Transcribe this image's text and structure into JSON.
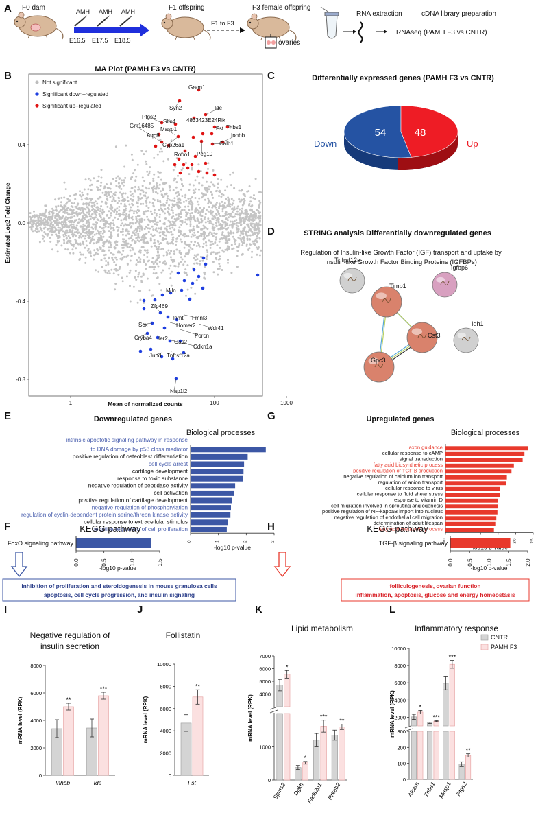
{
  "panel_letters": {
    "A": "A",
    "B": "B",
    "C": "C",
    "D": "D",
    "E": "E",
    "F": "F",
    "G": "G",
    "H": "H",
    "I": "I",
    "J": "J",
    "K": "K",
    "L": "L"
  },
  "panelA": {
    "f0": "F0 dam",
    "amh": "AMH",
    "e165": "E16.5",
    "e175": "E17.5",
    "e185": "E18.5",
    "f1": "F1 offspring",
    "f1tof3": "F1 to F3",
    "f3": "F3 female offspring",
    "ovaries": "ovaries",
    "rna": "RNA extraction",
    "cdna": "cDNA library preparation",
    "rnaseq": "RNAseq (PAMH F3 vs CNTR)"
  },
  "panelB": {
    "title": "MA Plot (PAMH F3 vs CNTR)",
    "legend": [
      "Not significant",
      "Significant down–regulated",
      "Significant up–regulated"
    ],
    "ylabel": "Estimated Log2 Fold Change",
    "xlabel": "Mean of normalized counts",
    "yticks": [
      "0.4",
      "0.0",
      "-0.4",
      "-0.8"
    ],
    "xticks": [
      "1",
      "100",
      "1000"
    ],
    "up_labels": [
      "Grem1",
      "Syn2",
      "Ide",
      "Ptgs2",
      "Slfn4",
      "4833423E24Rik",
      "Gm16485",
      "Masp1",
      "Fst",
      "Thbs1",
      "Aqp8",
      "Inhbb",
      "Cyp26a1",
      "Calb1",
      "Robo1",
      "Peg10"
    ],
    "down_labels": [
      "Mlln",
      "Zfp469",
      "Inmt",
      "Fmnl3",
      "Scx",
      "Homer2",
      "Wdr41",
      "Cryba4",
      "Ier2",
      "Porcn",
      "Gas2",
      "Cdkn1a",
      "Jund",
      "Tnfrsf12a",
      "Nap1l2"
    ]
  },
  "panelC": {
    "title": "Differentially expressed genes (PAMH F3 vs CNTR)",
    "down_label": "Down",
    "up_label": "Up",
    "colors": {
      "down": "#2553a3",
      "up": "#ee1c25"
    }
  },
  "panelD": {
    "title": "STRING analysis Differentially downregulated genes",
    "subtitle1": "Regulation of Insulin-like Growth Factor (IGF) transport and uptake by",
    "subtitle2": "Insulin-like Growth Factor Binding Proteins (IGFBPs)",
    "nodes": [
      "Tnfrsf12a",
      "Timp1",
      "Igfbp6",
      "Cst3",
      "Idh1",
      "Gpc3"
    ]
  },
  "panelE": {
    "title": "Downregulated genes",
    "subtitle": "Biological processes",
    "xlabel": "-log10 p-value",
    "xticks": [
      "0",
      "1",
      "2",
      "3"
    ],
    "color": "#3c57a5"
  },
  "panelG": {
    "title": "Upregulated genes",
    "subtitle": "Biological processes",
    "xlabel": "-log10 p-value",
    "xticks": [
      "0.0",
      "0.5",
      "1.0",
      "1.5",
      "2.0",
      "2.5"
    ],
    "color": "#e8392c"
  },
  "panelF": {
    "title": "KEGG pathway",
    "term": "FoxO signaling pathway",
    "value": 1.35,
    "xticks": [
      "0.0",
      "0.5",
      "1.0",
      "1.5"
    ],
    "xlabel": "-log10 p-value",
    "box1": "inhibition of  proliferation and steroidogenesis in mouse granulosa cells",
    "box2": "apoptosis, cell cycle progression, and insulin signaling"
  },
  "panelH": {
    "title": "KEGG pathway",
    "term": "TGF-β signaling pathway",
    "value": 1.55,
    "xticks": [
      "0.0",
      "0.5",
      "1.0",
      "1.5",
      "2.0"
    ],
    "xlabel": "-log10 p-value",
    "box1": "folliculogenesis, ovarian function",
    "box2": "inflammation, apoptosis, glucose and energy homeostasis"
  },
  "panelI": {
    "title1": "Negative regulation of",
    "title2": "insulin secretion",
    "ylabel": "mRNA level (RPK)"
  },
  "panelJ": {
    "title": "Follistatin",
    "ylabel": "mRNA level (RPK)"
  },
  "panelK": {
    "title": "Lipid metabolism",
    "ylabel": "mRNA level (RPK)"
  },
  "panelL": {
    "title": "Inflammatory response",
    "ylabel": "mRNA level (RPK)",
    "legend": [
      "CNTR",
      "PAMH F3"
    ]
  },
  "bar_colors": {
    "cntr": "#d4d4d4",
    "pamh": "#fbe0e0",
    "cntr_edge": "#9a9a9a",
    "pamh_edge": "#e49b9b"
  },
  "chart_data": [
    {
      "type": "pie",
      "panel": "C",
      "title": "Differentially expressed genes (PAMH F3 vs CNTR)",
      "labels": [
        "Down",
        "Up"
      ],
      "values": [
        54,
        48
      ]
    },
    {
      "type": "bar",
      "panel": "E",
      "title": "Downregulated genes",
      "subtitle": "Biological processes",
      "orientation": "horizontal",
      "xlabel": "-log10 p-value",
      "xlim": [
        0,
        3
      ],
      "categories": [
        "intrinsic apoptotic signaling pathway in response to DNA damage by p53 class mediator",
        "positive regulation of osteoblast differentiation",
        "cell cycle arrest",
        "cartilage development",
        "response to toxic substance",
        "negative regulation of peptidase activity",
        "cell activation",
        "positive regulation of cartilage development",
        "negative regulation of phosphorylation",
        "regulation of cyclin-dependent protein serine/threon kinase activity",
        "cellular response to extracellular stimulus",
        "negative regulation of cell proliferation"
      ],
      "highlighted": [
        true,
        false,
        true,
        false,
        false,
        false,
        false,
        false,
        true,
        true,
        false,
        true
      ],
      "values": [
        2.7,
        2.05,
        1.92,
        1.9,
        1.88,
        1.6,
        1.55,
        1.5,
        1.45,
        1.43,
        1.35,
        1.3
      ]
    },
    {
      "type": "bar",
      "panel": "G",
      "title": "Upregulated genes",
      "subtitle": "Biological processes",
      "orientation": "horizontal",
      "xlabel": "-log10 p-value",
      "xlim": [
        0,
        2.5
      ],
      "categories": [
        "axon guidance",
        "cellular response to cAMP",
        "signal transduction",
        "fatty acid biosynthetic process",
        "positive regulation of TGF β production",
        "negative regulation of calcium ion transport",
        "regulation of anion transport",
        "cellular response to virus",
        "cellular response to fluid shear stress",
        "response to vitamin D",
        "cell migration involved in sprouting angiogenesis",
        "positive regulation of NF-kappaB import into nucleus",
        "negative regulation of endothelial cell migration",
        "determination of adult lifespan",
        "fatty acid metabolic process"
      ],
      "highlighted": [
        true,
        false,
        false,
        true,
        true,
        false,
        false,
        false,
        false,
        false,
        false,
        false,
        false,
        false,
        true
      ],
      "values": [
        2.35,
        2.25,
        2.2,
        1.95,
        1.88,
        1.75,
        1.72,
        1.55,
        1.55,
        1.5,
        1.5,
        1.48,
        1.45,
        1.42,
        1.38
      ]
    },
    {
      "type": "bar",
      "panel": "F",
      "title": "KEGG pathway",
      "orientation": "horizontal",
      "xlabel": "-log10 p-value",
      "xlim": [
        0,
        1.5
      ],
      "categories": [
        "FoxO signaling pathway"
      ],
      "values": [
        1.35
      ]
    },
    {
      "type": "bar",
      "panel": "H",
      "title": "KEGG pathway",
      "orientation": "horizontal",
      "xlabel": "-log10 p-value",
      "xlim": [
        0,
        2.0
      ],
      "categories": [
        "TGF-β signaling pathway"
      ],
      "values": [
        1.55
      ]
    },
    {
      "type": "bar",
      "panel": "I",
      "title": "Negative regulation of insulin secretion",
      "ylabel": "mRNA level (RPK)",
      "ylim": [
        0,
        8000
      ],
      "yticks": [
        0,
        2000,
        4000,
        6000,
        8000
      ],
      "categories": [
        "Inhbb",
        "Ide"
      ],
      "series": [
        {
          "name": "CNTR",
          "values": [
            3400,
            3450
          ],
          "errors": [
            650,
            650
          ]
        },
        {
          "name": "PAMH F3",
          "values": [
            5000,
            5800
          ],
          "errors": [
            250,
            250
          ]
        }
      ],
      "significance": [
        "**",
        "***"
      ]
    },
    {
      "type": "bar",
      "panel": "J",
      "title": "Follistatin",
      "ylabel": "mRNA level (RPK)",
      "ylim": [
        0,
        10000
      ],
      "yticks": [
        0,
        2000,
        4000,
        6000,
        8000,
        10000
      ],
      "categories": [
        "Fst"
      ],
      "series": [
        {
          "name": "CNTR",
          "values": [
            4700
          ],
          "errors": [
            750
          ]
        },
        {
          "name": "PAMH F3",
          "values": [
            7050
          ],
          "errors": [
            650
          ]
        }
      ],
      "significance": [
        "**"
      ]
    },
    {
      "type": "bar",
      "panel": "K",
      "title": "Lipid metabolism",
      "ylabel": "mRNA level (RPK)",
      "broken_axis": true,
      "yticks": [
        0,
        1000,
        2000,
        3000,
        4000,
        5000,
        6000,
        7000
      ],
      "categories": [
        "Sgms2",
        "Dgkh",
        "Fads2p1",
        "Prkab2"
      ],
      "series": [
        {
          "name": "CNTR",
          "values": [
            4700,
            380,
            1200,
            1350
          ],
          "errors": [
            450,
            60,
            200,
            150
          ]
        },
        {
          "name": "PAMH F3",
          "values": [
            5550,
            520,
            1620,
            1600
          ],
          "errors": [
            300,
            40,
            180,
            80
          ]
        }
      ],
      "significance": [
        "*",
        "*",
        "***",
        "**"
      ]
    },
    {
      "type": "bar",
      "panel": "L",
      "title": "Inflammatory response",
      "ylabel": "mRNA level (RPK)",
      "broken_axis": true,
      "yticks": [
        0,
        100,
        200,
        300,
        1000,
        2000,
        4000,
        6000,
        8000,
        10000
      ],
      "categories": [
        "Alcam",
        "Thbs1",
        "Masp1",
        "Ptgs2"
      ],
      "series": [
        {
          "name": "CNTR",
          "values": [
            2050,
            1350,
            5950,
            95
          ],
          "errors": [
            300,
            80,
            750,
            15
          ]
        },
        {
          "name": "PAMH F3",
          "values": [
            2600,
            1550,
            8150,
            150
          ],
          "errors": [
            200,
            50,
            450,
            10
          ]
        }
      ],
      "significance": [
        "*",
        "***",
        "***",
        "**"
      ]
    }
  ]
}
